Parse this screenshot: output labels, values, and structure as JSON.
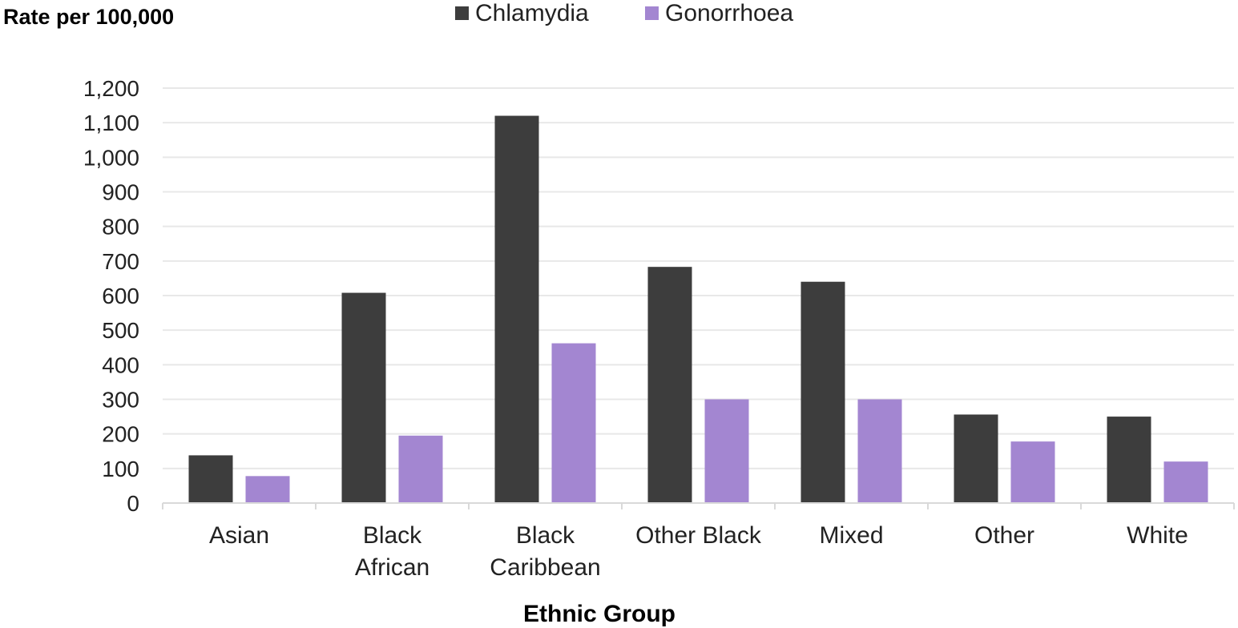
{
  "chart_data": {
    "type": "bar",
    "ylabel": "Rate per 100,000",
    "xlabel": "Ethnic Group",
    "categories": [
      [
        "Asian"
      ],
      [
        "Black",
        "African"
      ],
      [
        "Black",
        "Caribbean"
      ],
      [
        "Other Black"
      ],
      [
        "Mixed"
      ],
      [
        "Other"
      ],
      [
        "White"
      ]
    ],
    "series": [
      {
        "name": "Chlamydia",
        "color": "#3d3d3d",
        "values": [
          138,
          608,
          1120,
          683,
          640,
          256,
          250
        ]
      },
      {
        "name": "Gonorrhoea",
        "color": "#a386d1",
        "values": [
          78,
          195,
          462,
          300,
          300,
          178,
          120
        ]
      }
    ],
    "ylim": [
      0,
      1200
    ],
    "yticks": [
      0,
      100,
      200,
      300,
      400,
      500,
      600,
      700,
      800,
      900,
      1000,
      1100,
      1200
    ],
    "ytick_labels": [
      "0",
      "100",
      "200",
      "300",
      "400",
      "500",
      "600",
      "700",
      "800",
      "900",
      "1,000",
      "1,100",
      "1,200"
    ],
    "grid": true,
    "legend_position": "top-center"
  }
}
